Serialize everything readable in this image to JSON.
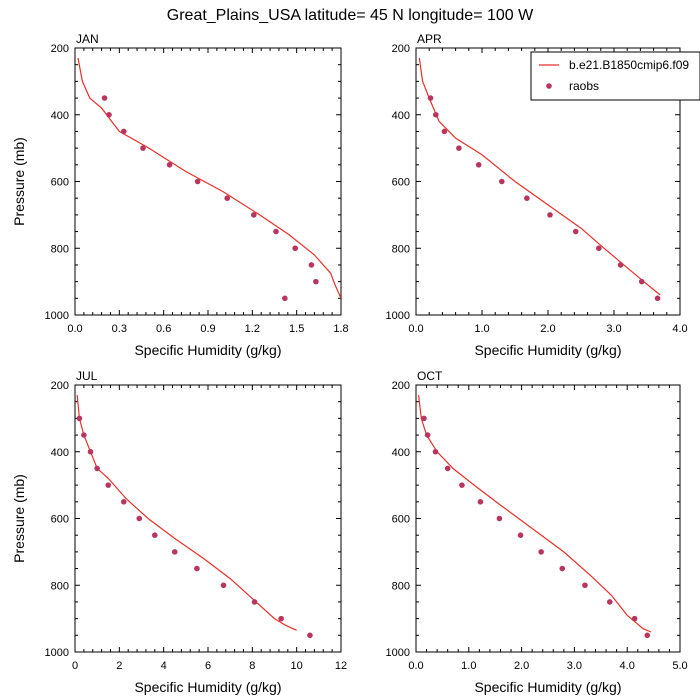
{
  "title": "Great_Plains_USA  latitude= 45 N longitude= 100 W",
  "colors": {
    "model": "#e8302a",
    "obs": "#b8365e"
  },
  "legend": {
    "model_label": "b.e21.B1850cmip6.f09",
    "obs_label": "raobs",
    "placement": "top-right"
  },
  "chart_data": [
    {
      "type": "line",
      "panel": "JAN",
      "xlabel": "Specific Humidity (g/kg)",
      "ylabel": "Pressure (mb)",
      "xlim": [
        0,
        1.8
      ],
      "ylim": [
        1000,
        200
      ],
      "xticks": [
        "0.0",
        "0.3",
        "0.6",
        "0.9",
        "1.2",
        "1.5",
        "1.8"
      ],
      "yticks": [
        "200",
        "400",
        "600",
        "800",
        "1000"
      ],
      "series": [
        {
          "kind": "line",
          "x": [
            0.02,
            0.05,
            0.1,
            0.18,
            0.3,
            0.5,
            0.75,
            1.0,
            1.25,
            1.45,
            1.62,
            1.73,
            1.76,
            1.8
          ],
          "y": [
            230,
            300,
            350,
            380,
            450,
            500,
            570,
            630,
            700,
            760,
            820,
            875,
            910,
            950
          ]
        },
        {
          "kind": "scatter",
          "x": [
            0.2,
            0.23,
            0.33,
            0.46,
            0.64,
            0.83,
            1.03,
            1.21,
            1.36,
            1.49,
            1.6,
            1.63,
            1.42
          ],
          "y": [
            350,
            400,
            450,
            500,
            550,
            600,
            650,
            700,
            750,
            800,
            850,
            900,
            950
          ]
        }
      ]
    },
    {
      "type": "line",
      "panel": "APR",
      "xlabel": "Specific Humidity (g/kg)",
      "ylabel": "",
      "xlim": [
        0,
        4.0
      ],
      "ylim": [
        1000,
        200
      ],
      "xticks": [
        "0.0",
        "1.0",
        "2.0",
        "3.0",
        "4.0"
      ],
      "yticks": [
        "200",
        "400",
        "600",
        "800",
        "1000"
      ],
      "series": [
        {
          "kind": "line",
          "x": [
            0.05,
            0.1,
            0.2,
            0.35,
            0.6,
            1.0,
            1.5,
            2.0,
            2.5,
            2.85,
            3.15,
            3.45,
            3.7
          ],
          "y": [
            230,
            300,
            350,
            420,
            470,
            520,
            600,
            670,
            740,
            800,
            850,
            900,
            940
          ]
        },
        {
          "kind": "scatter",
          "x": [
            0.22,
            0.3,
            0.43,
            0.65,
            0.95,
            1.3,
            1.68,
            2.03,
            2.42,
            2.77,
            3.1,
            3.42,
            3.66
          ],
          "y": [
            350,
            400,
            450,
            500,
            550,
            600,
            650,
            700,
            750,
            800,
            850,
            900,
            950
          ]
        }
      ]
    },
    {
      "type": "line",
      "panel": "JUL",
      "xlabel": "Specific Humidity (g/kg)",
      "ylabel": "Pressure (mb)",
      "xlim": [
        0,
        12
      ],
      "ylim": [
        1000,
        200
      ],
      "xticks": [
        "0",
        "2",
        "4",
        "6",
        "8",
        "10",
        "12"
      ],
      "yticks": [
        "200",
        "400",
        "600",
        "800",
        "1000"
      ],
      "series": [
        {
          "kind": "line",
          "x": [
            0.1,
            0.2,
            0.4,
            0.7,
            1.0,
            1.5,
            2.3,
            3.3,
            4.5,
            5.8,
            7.0,
            8.0,
            9.0,
            9.5,
            10.0
          ],
          "y": [
            230,
            300,
            350,
            400,
            450,
            480,
            540,
            600,
            660,
            720,
            780,
            840,
            900,
            920,
            935
          ]
        },
        {
          "kind": "scatter",
          "x": [
            0.2,
            0.4,
            0.7,
            1.0,
            1.5,
            2.2,
            2.9,
            3.6,
            4.5,
            5.5,
            6.7,
            8.1,
            9.3,
            10.6
          ],
          "y": [
            300,
            350,
            400,
            450,
            500,
            550,
            600,
            650,
            700,
            750,
            800,
            850,
            900,
            950
          ]
        }
      ]
    },
    {
      "type": "line",
      "panel": "OCT",
      "xlabel": "Specific Humidity (g/kg)",
      "ylabel": "",
      "xlim": [
        0,
        5.0
      ],
      "ylim": [
        1000,
        200
      ],
      "xticks": [
        "0.0",
        "1.0",
        "2.0",
        "3.0",
        "4.0",
        "5.0"
      ],
      "yticks": [
        "200",
        "400",
        "600",
        "800",
        "1000"
      ],
      "series": [
        {
          "kind": "line",
          "x": [
            0.05,
            0.1,
            0.2,
            0.4,
            0.7,
            1.1,
            1.6,
            2.2,
            2.8,
            3.3,
            3.7,
            4.0,
            4.3,
            4.45
          ],
          "y": [
            230,
            300,
            350,
            400,
            450,
            500,
            560,
            630,
            700,
            770,
            830,
            890,
            930,
            940
          ]
        },
        {
          "kind": "scatter",
          "x": [
            0.15,
            0.22,
            0.37,
            0.6,
            0.87,
            1.22,
            1.58,
            1.98,
            2.37,
            2.77,
            3.2,
            3.67,
            4.14,
            4.38
          ],
          "y": [
            300,
            350,
            400,
            450,
            500,
            550,
            600,
            650,
            700,
            750,
            800,
            850,
            900,
            950
          ]
        }
      ]
    }
  ]
}
